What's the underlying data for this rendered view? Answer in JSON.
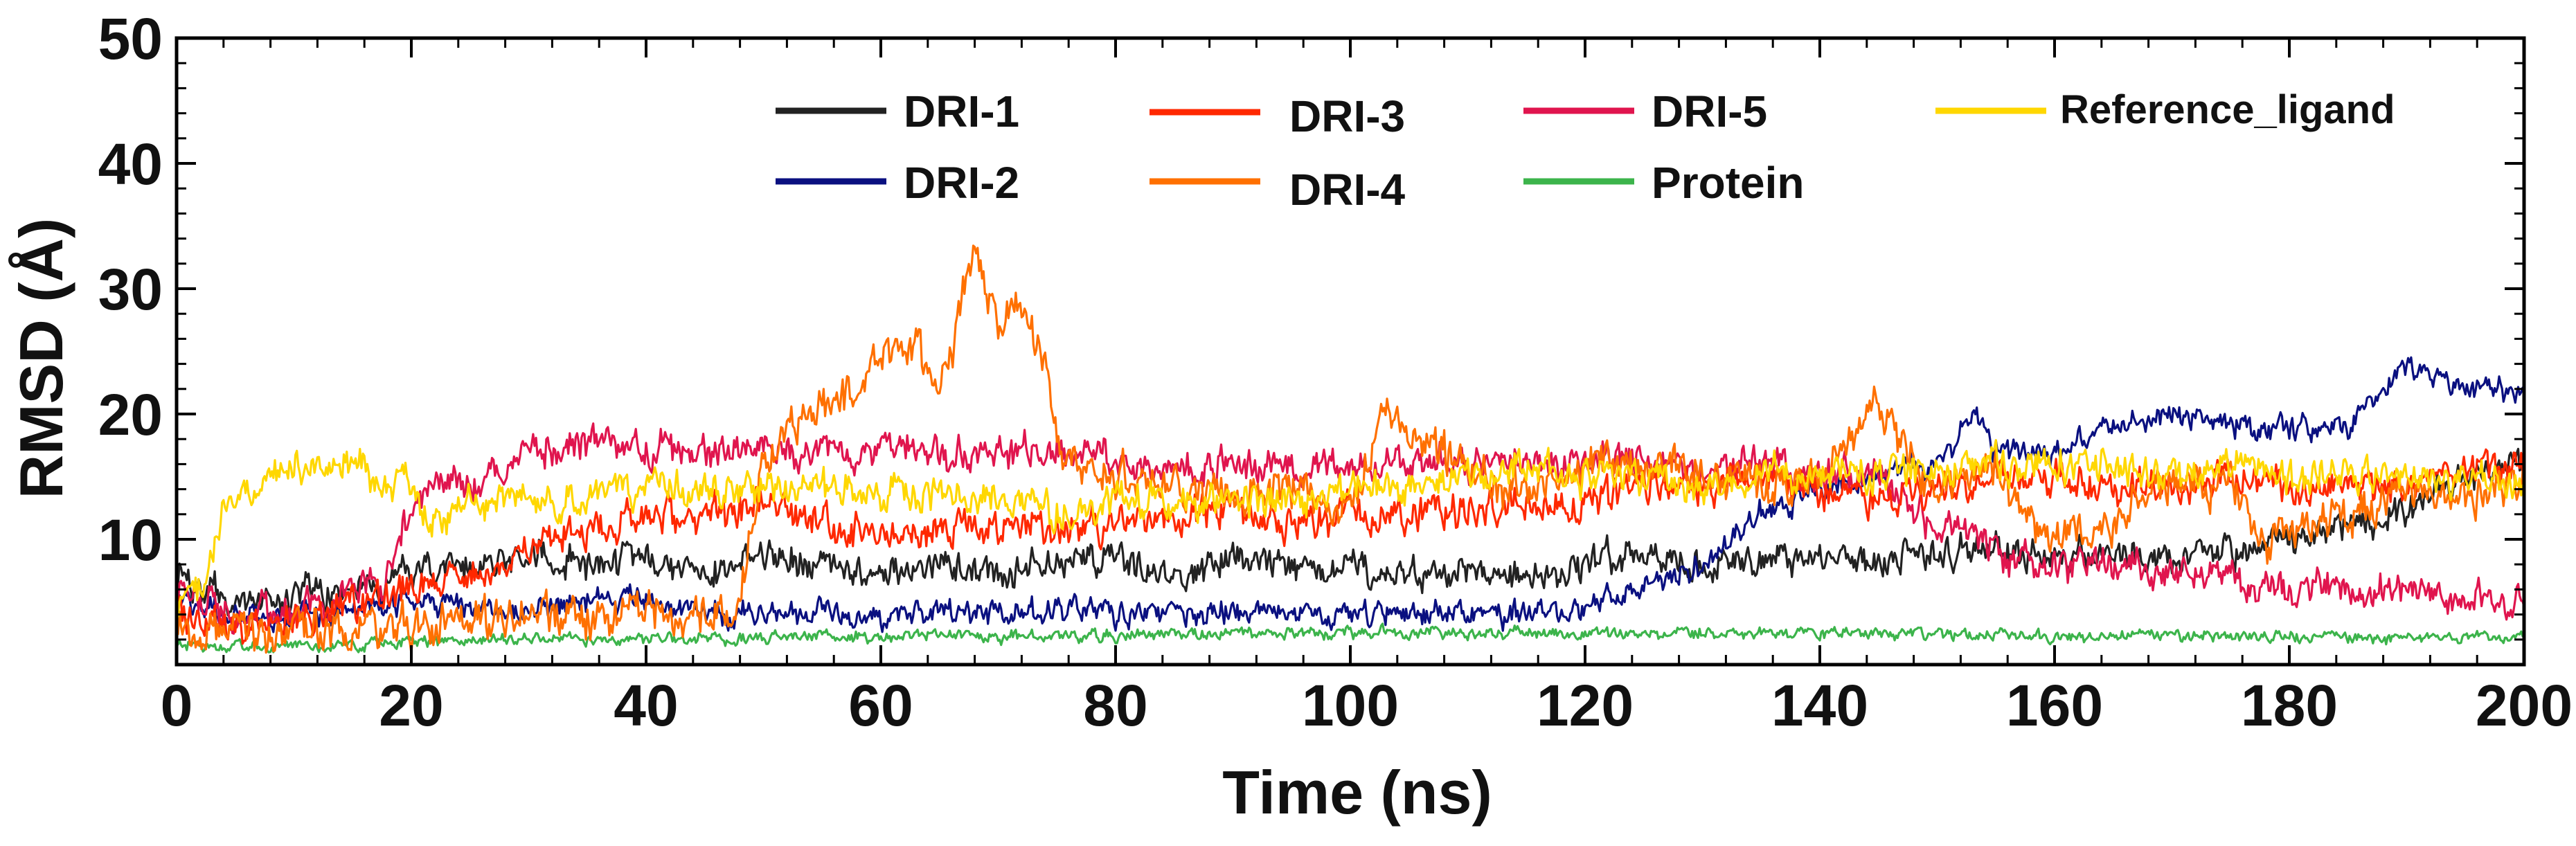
{
  "chart_data": {
    "type": "line",
    "title": "",
    "xlabel": "Time (ns)",
    "ylabel": "RMSD (Å)",
    "xlim": [
      0,
      200
    ],
    "ylim": [
      0,
      50
    ],
    "x_ticks": [
      0,
      20,
      40,
      60,
      80,
      100,
      120,
      140,
      160,
      180,
      200
    ],
    "x_tick_labels": [
      "0",
      "20",
      "40",
      "60",
      "80",
      "100",
      "120",
      "140",
      "160",
      "180",
      "200"
    ],
    "y_ticks": [
      10,
      20,
      30,
      40,
      50
    ],
    "y_tick_labels": [
      "10",
      "20",
      "30",
      "40",
      "50"
    ],
    "grid": false,
    "legend_position": "top",
    "series": [
      {
        "name": "DRI-1",
        "color": "#222222",
        "noise": 0.9,
        "points": [
          [
            0,
            7
          ],
          [
            5,
            5
          ],
          [
            10,
            5.5
          ],
          [
            15,
            6
          ],
          [
            20,
            7
          ],
          [
            25,
            8
          ],
          [
            30,
            9
          ],
          [
            35,
            8
          ],
          [
            40,
            8.5
          ],
          [
            45,
            7
          ],
          [
            50,
            9
          ],
          [
            55,
            8
          ],
          [
            60,
            7
          ],
          [
            65,
            8
          ],
          [
            70,
            7
          ],
          [
            75,
            8.5
          ],
          [
            80,
            8
          ],
          [
            85,
            7
          ],
          [
            90,
            8
          ],
          [
            95,
            7.5
          ],
          [
            100,
            8
          ],
          [
            105,
            7
          ],
          [
            110,
            7.5
          ],
          [
            115,
            7
          ],
          [
            120,
            8
          ],
          [
            125,
            8.5
          ],
          [
            130,
            8
          ],
          [
            135,
            8.5
          ],
          [
            140,
            9
          ],
          [
            145,
            8
          ],
          [
            150,
            9
          ],
          [
            155,
            9
          ],
          [
            160,
            8.5
          ],
          [
            165,
            9
          ],
          [
            170,
            8.5
          ],
          [
            175,
            9
          ],
          [
            180,
            10
          ],
          [
            185,
            11
          ],
          [
            190,
            12
          ],
          [
            195,
            15
          ],
          [
            200,
            16
          ]
        ]
      },
      {
        "name": "DRI-2",
        "color": "#0a1080",
        "noise": 0.7,
        "points": [
          [
            0,
            5
          ],
          [
            5,
            4
          ],
          [
            10,
            4
          ],
          [
            15,
            4.5
          ],
          [
            20,
            5
          ],
          [
            25,
            4.5
          ],
          [
            30,
            4.5
          ],
          [
            35,
            5
          ],
          [
            40,
            5
          ],
          [
            45,
            4
          ],
          [
            50,
            4
          ],
          [
            55,
            4
          ],
          [
            60,
            3.5
          ],
          [
            65,
            4
          ],
          [
            70,
            4
          ],
          [
            75,
            4.5
          ],
          [
            80,
            4
          ],
          [
            85,
            4
          ],
          [
            90,
            4
          ],
          [
            95,
            4
          ],
          [
            100,
            4
          ],
          [
            105,
            4
          ],
          [
            110,
            4
          ],
          [
            115,
            4
          ],
          [
            120,
            4.5
          ],
          [
            125,
            6
          ],
          [
            130,
            8
          ],
          [
            135,
            12
          ],
          [
            140,
            14
          ],
          [
            145,
            15
          ],
          [
            150,
            16
          ],
          [
            153,
            20
          ],
          [
            155,
            17
          ],
          [
            160,
            17
          ],
          [
            165,
            19
          ],
          [
            170,
            20
          ],
          [
            175,
            19
          ],
          [
            180,
            19
          ],
          [
            185,
            19
          ],
          [
            188,
            22
          ],
          [
            190,
            24
          ],
          [
            195,
            22
          ],
          [
            200,
            22
          ]
        ]
      },
      {
        "name": "DRI-3",
        "color": "#ff2800",
        "noise": 1.0,
        "points": [
          [
            0,
            4
          ],
          [
            5,
            3
          ],
          [
            10,
            3.5
          ],
          [
            15,
            5
          ],
          [
            20,
            6
          ],
          [
            25,
            7
          ],
          [
            30,
            9
          ],
          [
            35,
            11
          ],
          [
            40,
            12
          ],
          [
            45,
            12
          ],
          [
            50,
            13
          ],
          [
            55,
            11
          ],
          [
            60,
            10.5
          ],
          [
            65,
            10.5
          ],
          [
            70,
            11
          ],
          [
            75,
            11
          ],
          [
            80,
            11
          ],
          [
            85,
            12
          ],
          [
            90,
            12
          ],
          [
            95,
            11
          ],
          [
            100,
            12
          ],
          [
            105,
            12
          ],
          [
            110,
            12
          ],
          [
            115,
            13
          ],
          [
            120,
            13
          ],
          [
            125,
            14
          ],
          [
            130,
            14
          ],
          [
            135,
            15
          ],
          [
            140,
            14
          ],
          [
            145,
            13
          ],
          [
            150,
            14
          ],
          [
            155,
            15
          ],
          [
            160,
            15
          ],
          [
            165,
            14
          ],
          [
            170,
            14
          ],
          [
            175,
            15
          ],
          [
            180,
            14
          ],
          [
            185,
            14
          ],
          [
            190,
            14
          ],
          [
            195,
            15
          ],
          [
            200,
            16
          ]
        ]
      },
      {
        "name": "DRI-4",
        "color": "#ff7000",
        "noise": 1.2,
        "points": [
          [
            0,
            3
          ],
          [
            10,
            3
          ],
          [
            20,
            3
          ],
          [
            30,
            4
          ],
          [
            40,
            4
          ],
          [
            45,
            4
          ],
          [
            48,
            5
          ],
          [
            50,
            16
          ],
          [
            52,
            19
          ],
          [
            55,
            20
          ],
          [
            58,
            22
          ],
          [
            60,
            25
          ],
          [
            63,
            25
          ],
          [
            65,
            20
          ],
          [
            67,
            29
          ],
          [
            68,
            33
          ],
          [
            70,
            27
          ],
          [
            72,
            28
          ],
          [
            74,
            25
          ],
          [
            75,
            17
          ],
          [
            78,
            15
          ],
          [
            80,
            15
          ],
          [
            85,
            14
          ],
          [
            90,
            13
          ],
          [
            95,
            14
          ],
          [
            100,
            13
          ],
          [
            103,
            20
          ],
          [
            106,
            18
          ],
          [
            110,
            15
          ],
          [
            115,
            14
          ],
          [
            120,
            16
          ],
          [
            125,
            16
          ],
          [
            130,
            15
          ],
          [
            135,
            14
          ],
          [
            140,
            15
          ],
          [
            145,
            21
          ],
          [
            148,
            16
          ],
          [
            150,
            14
          ],
          [
            155,
            16
          ],
          [
            157,
            12
          ],
          [
            160,
            10
          ],
          [
            165,
            11
          ],
          [
            170,
            15
          ],
          [
            175,
            14
          ],
          [
            178,
            10
          ],
          [
            180,
            11
          ],
          [
            185,
            12
          ],
          [
            190,
            14
          ],
          [
            195,
            13
          ],
          [
            200,
            15
          ]
        ]
      },
      {
        "name": "DRI-5",
        "color": "#e0154e",
        "noise": 1.0,
        "points": [
          [
            0,
            6
          ],
          [
            5,
            4
          ],
          [
            10,
            4
          ],
          [
            15,
            6
          ],
          [
            18,
            7
          ],
          [
            20,
            12
          ],
          [
            22,
            15
          ],
          [
            25,
            14
          ],
          [
            30,
            17
          ],
          [
            35,
            17.5
          ],
          [
            40,
            17
          ],
          [
            45,
            17
          ],
          [
            50,
            17
          ],
          [
            55,
            17
          ],
          [
            60,
            17
          ],
          [
            65,
            17
          ],
          [
            70,
            17
          ],
          [
            75,
            17
          ],
          [
            80,
            16
          ],
          [
            85,
            16
          ],
          [
            90,
            16
          ],
          [
            95,
            15.5
          ],
          [
            100,
            16
          ],
          [
            105,
            16
          ],
          [
            110,
            16
          ],
          [
            115,
            16
          ],
          [
            120,
            16
          ],
          [
            125,
            16
          ],
          [
            130,
            15
          ],
          [
            135,
            16
          ],
          [
            140,
            15
          ],
          [
            145,
            15
          ],
          [
            150,
            11
          ],
          [
            155,
            9
          ],
          [
            160,
            8
          ],
          [
            165,
            8
          ],
          [
            170,
            7.5
          ],
          [
            175,
            7
          ],
          [
            180,
            6
          ],
          [
            185,
            6
          ],
          [
            190,
            6
          ],
          [
            195,
            5
          ],
          [
            200,
            5
          ]
        ]
      },
      {
        "name": "Protein",
        "color": "#3cb44b",
        "noise": 0.35,
        "points": [
          [
            0,
            1.5
          ],
          [
            10,
            1.5
          ],
          [
            20,
            1.8
          ],
          [
            30,
            2
          ],
          [
            40,
            2
          ],
          [
            50,
            2.2
          ],
          [
            60,
            2.2
          ],
          [
            70,
            2.3
          ],
          [
            80,
            2.3
          ],
          [
            90,
            2.5
          ],
          [
            100,
            2.5
          ],
          [
            110,
            2.5
          ],
          [
            120,
            2.5
          ],
          [
            130,
            2.5
          ],
          [
            140,
            2.5
          ],
          [
            150,
            2.5
          ],
          [
            160,
            2.3
          ],
          [
            170,
            2.3
          ],
          [
            180,
            2.2
          ],
          [
            190,
            2.2
          ],
          [
            200,
            2.2
          ]
        ]
      },
      {
        "name": "Reference_ligand",
        "color": "#ffd700",
        "noise": 1.0,
        "points": [
          [
            0,
            4
          ],
          [
            2,
            6
          ],
          [
            4,
            13
          ],
          [
            6,
            14
          ],
          [
            10,
            16
          ],
          [
            15,
            16
          ],
          [
            20,
            14
          ],
          [
            22,
            11
          ],
          [
            25,
            13
          ],
          [
            30,
            13
          ],
          [
            35,
            13.5
          ],
          [
            40,
            14
          ],
          [
            45,
            14
          ],
          [
            50,
            14
          ],
          [
            55,
            14
          ],
          [
            60,
            14
          ],
          [
            65,
            13.5
          ],
          [
            70,
            13
          ],
          [
            75,
            12
          ],
          [
            80,
            13
          ],
          [
            85,
            13
          ],
          [
            90,
            13
          ],
          [
            95,
            13
          ],
          [
            100,
            14
          ],
          [
            105,
            14
          ],
          [
            110,
            15
          ],
          [
            115,
            16
          ],
          [
            120,
            15
          ],
          [
            125,
            15
          ],
          [
            130,
            14
          ],
          [
            135,
            15
          ],
          [
            140,
            15
          ],
          [
            145,
            15
          ],
          [
            150,
            16
          ],
          [
            155,
            16
          ],
          [
            160,
            16
          ],
          [
            165,
            16
          ],
          [
            170,
            15
          ],
          [
            175,
            16
          ],
          [
            180,
            15
          ],
          [
            185,
            15
          ],
          [
            190,
            15
          ],
          [
            195,
            15
          ],
          [
            200,
            14
          ]
        ]
      }
    ]
  }
}
